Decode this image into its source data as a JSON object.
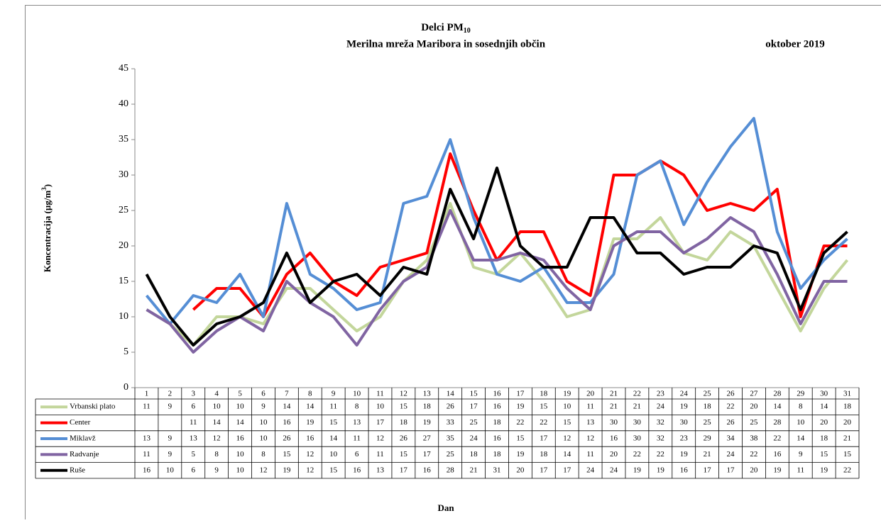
{
  "chart_data": {
    "type": "line",
    "title": "Delci PM",
    "title_subscript": "10",
    "subtitle": "Merilna mreža Maribora  in sosednjih občin",
    "period": "oktober 2019",
    "y_label": "Koncentracija  (µg/m",
    "y_label_superscript": "3",
    "y_label_end": ")",
    "x_label": "Dan",
    "categories": [
      "1",
      "2",
      "3",
      "4",
      "5",
      "6",
      "7",
      "8",
      "9",
      "10",
      "11",
      "12",
      "13",
      "14",
      "15",
      "16",
      "17",
      "18",
      "19",
      "20",
      "21",
      "22",
      "23",
      "24",
      "25",
      "26",
      "27",
      "28",
      "29",
      "30",
      "31"
    ],
    "ylim": [
      0,
      45
    ],
    "yticks": [
      0,
      5,
      10,
      15,
      20,
      25,
      30,
      35,
      40,
      45
    ],
    "grid": false,
    "series": [
      {
        "name": "Vrbanski plato",
        "color": "#c3d69b",
        "values": [
          11,
          9,
          6,
          10,
          10,
          9,
          14,
          14,
          11,
          8,
          10,
          15,
          18,
          26,
          17,
          16,
          19,
          15,
          10,
          11,
          21,
          21,
          24,
          19,
          18,
          22,
          20,
          14,
          8,
          14,
          18
        ]
      },
      {
        "name": "Center",
        "color": "#ff0000",
        "values": [
          null,
          null,
          11,
          14,
          14,
          10,
          16,
          19,
          15,
          13,
          17,
          18,
          19,
          33,
          25,
          18,
          22,
          22,
          15,
          13,
          30,
          30,
          32,
          30,
          25,
          26,
          25,
          28,
          10,
          20,
          20
        ]
      },
      {
        "name": "Miklavž",
        "color": "#558ed5",
        "values": [
          13,
          9,
          13,
          12,
          16,
          10,
          26,
          16,
          14,
          11,
          12,
          26,
          27,
          35,
          24,
          16,
          15,
          17,
          12,
          12,
          16,
          30,
          32,
          23,
          29,
          34,
          38,
          22,
          14,
          18,
          21
        ]
      },
      {
        "name": "Radvanje",
        "color": "#8064a2",
        "values": [
          11,
          9,
          5,
          8,
          10,
          8,
          15,
          12,
          10,
          6,
          11,
          15,
          17,
          25,
          18,
          18,
          19,
          18,
          14,
          11,
          20,
          22,
          22,
          19,
          21,
          24,
          22,
          16,
          9,
          15,
          15
        ]
      },
      {
        "name": "Ruše",
        "color": "#000000",
        "values": [
          16,
          10,
          6,
          9,
          10,
          12,
          19,
          12,
          15,
          16,
          13,
          17,
          16,
          28,
          21,
          31,
          20,
          17,
          17,
          24,
          24,
          19,
          19,
          16,
          17,
          17,
          20,
          19,
          11,
          19,
          22
        ]
      }
    ]
  }
}
